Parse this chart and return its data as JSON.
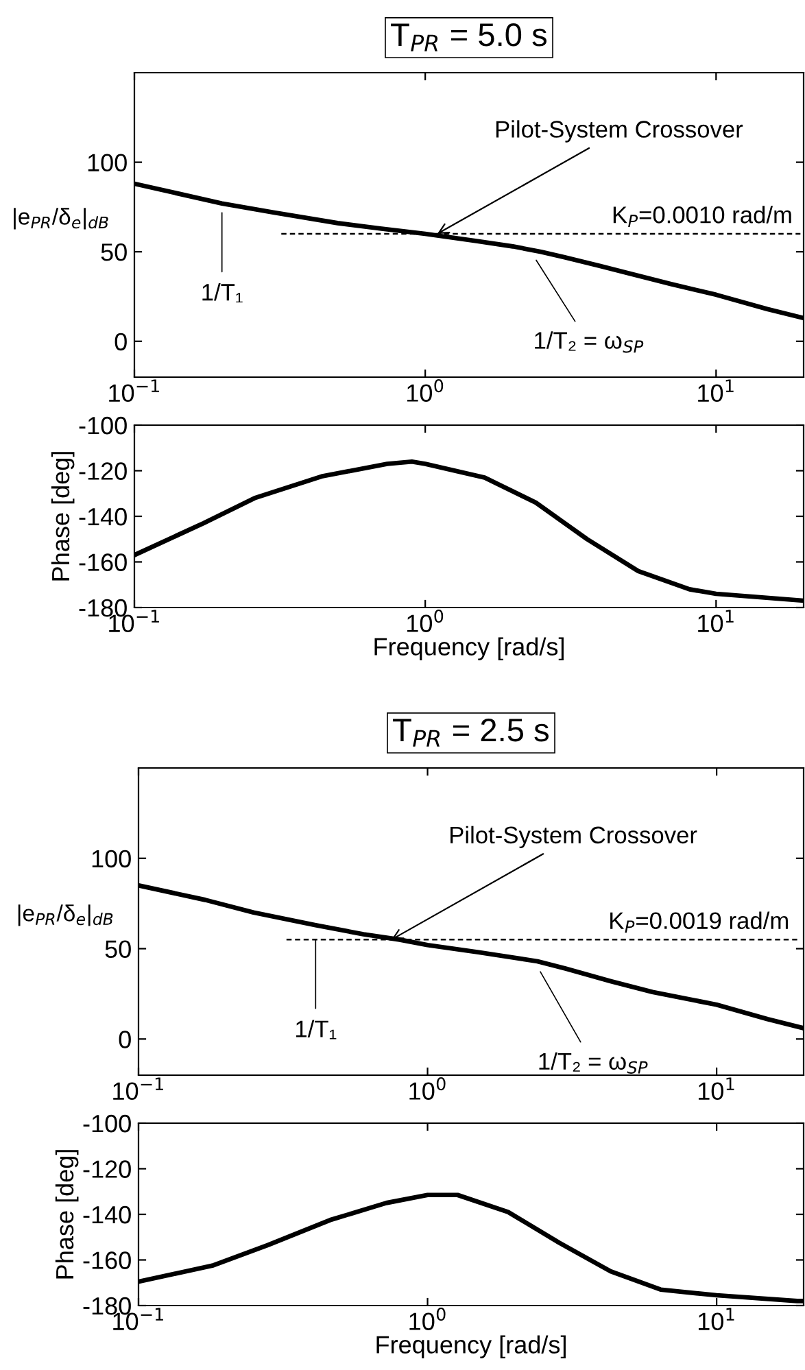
{
  "chart_data": [
    {
      "type": "line",
      "title": "T$_{PR}$ = 5.0 s",
      "ylabel": "|e$_{PR}$/δ$_{e}$|$_{dB}$",
      "log": "x",
      "grid": false,
      "legend": false,
      "xlim": [
        0.1,
        20
      ],
      "xticks": [
        {
          "value": 0.1,
          "label": "10$^{−1}$"
        },
        {
          "value": 1,
          "label": "10$^{0}$"
        },
        {
          "value": 10,
          "label": "10$^{1}$"
        }
      ],
      "ylim": [
        -20,
        150
      ],
      "yticks": [
        0,
        50,
        100
      ],
      "series": [
        {
          "color": "#000000",
          "x": [
            0.1,
            0.2,
            0.3,
            0.5,
            0.7,
            1,
            1.5,
            2,
            2.5,
            3,
            4,
            5,
            7,
            10,
            15,
            20
          ],
          "values": [
            88,
            77,
            72,
            66,
            63,
            60,
            56,
            53,
            50,
            47,
            42,
            38,
            32,
            26,
            18,
            13
          ]
        },
        {
          "name": "K$_{P}$=0.0010 rad/m",
          "color": "#000000",
          "line_style": "dashed",
          "x": [
            0.32,
            19.5
          ],
          "values": [
            60,
            60
          ]
        }
      ],
      "annotations": [
        {
          "text": "Pilot-System Crossover",
          "x": 1.1,
          "y": 60
        },
        {
          "text": "1/T₁",
          "x": 0.2,
          "y": 75
        },
        {
          "text": "1/T₂ = ω$_{SP}$",
          "x": 2.35,
          "y": 48
        }
      ]
    },
    {
      "type": "line",
      "xlabel": "Frequency [rad/s]",
      "ylabel": "Phase [deg]",
      "log": "x",
      "grid": false,
      "legend": false,
      "xlim": [
        0.1,
        20
      ],
      "xticks": [
        {
          "value": 0.1,
          "label": "10$^{−1}$"
        },
        {
          "value": 1,
          "label": "10$^{0}$"
        },
        {
          "value": 10,
          "label": "10$^{1}$"
        }
      ],
      "ylim": [
        -180,
        -100
      ],
      "yticks": [
        -180,
        -160,
        -140,
        -120,
        -100
      ],
      "series": [
        {
          "color": "#000000",
          "x": [
            0.1,
            0.173,
            0.259,
            0.44,
            0.74,
            0.9,
            1.0,
            1.6,
            2.4,
            3.6,
            5.4,
            8.1,
            10,
            20
          ],
          "values": [
            -157,
            -143,
            -132,
            -122.5,
            -117,
            -116,
            -117,
            -123,
            -134,
            -150,
            -164,
            -172,
            -174,
            -177
          ]
        }
      ]
    },
    {
      "type": "line",
      "title": "T$_{PR}$ = 2.5 s",
      "ylabel": "|e$_{PR}$/δ$_{e}$|$_{dB}$",
      "log": "x",
      "grid": false,
      "legend": false,
      "xlim": [
        0.1,
        20
      ],
      "xticks": [
        {
          "value": 0.1,
          "label": "10$^{−1}$"
        },
        {
          "value": 1,
          "label": "10$^{0}$"
        },
        {
          "value": 10,
          "label": "10$^{1}$"
        }
      ],
      "ylim": [
        -20,
        150
      ],
      "yticks": [
        0,
        50,
        100
      ],
      "series": [
        {
          "color": "#000000",
          "x": [
            0.1,
            0.17,
            0.25,
            0.41,
            0.6,
            0.8,
            1,
            1.5,
            2.4,
            3,
            4.3,
            6,
            10,
            15,
            20
          ],
          "values": [
            85,
            77,
            70,
            63,
            58,
            55,
            52,
            48,
            43,
            39,
            32,
            26,
            19,
            11,
            6
          ]
        },
        {
          "name": "K$_{P}$=0.0019 rad/m",
          "color": "#000000",
          "line_style": "dashed",
          "x": [
            0.325,
            19
          ],
          "values": [
            55,
            55
          ]
        }
      ],
      "annotations": [
        {
          "text": "Pilot-System Crossover",
          "x": 0.75,
          "y": 55
        },
        {
          "text": "1/T₁",
          "x": 0.41,
          "y": 58
        },
        {
          "text": "1/T₂ = ω$_{SP}$",
          "x": 2.4,
          "y": 40
        }
      ]
    },
    {
      "type": "line",
      "xlabel": "Frequency [rad/s]",
      "ylabel": "Phase [deg]",
      "log": "x",
      "grid": false,
      "legend": false,
      "xlim": [
        0.1,
        20
      ],
      "xticks": [
        {
          "value": 0.1,
          "label": "10$^{−1}$"
        },
        {
          "value": 1,
          "label": "10$^{0}$"
        },
        {
          "value": 10,
          "label": "10$^{1}$"
        }
      ],
      "ylim": [
        -180,
        -100
      ],
      "yticks": [
        -180,
        -160,
        -140,
        -120,
        -100
      ],
      "series": [
        {
          "color": "#000000",
          "x": [
            0.1,
            0.18,
            0.28,
            0.46,
            0.72,
            1,
            1.27,
            1.9,
            2.86,
            4.3,
            6.4,
            10,
            19,
            20
          ],
          "values": [
            -169.5,
            -162.5,
            -153.5,
            -142.5,
            -135,
            -131.5,
            -131.5,
            -139,
            -152.5,
            -165,
            -173,
            -175.5,
            -178,
            -178
          ]
        }
      ]
    }
  ]
}
